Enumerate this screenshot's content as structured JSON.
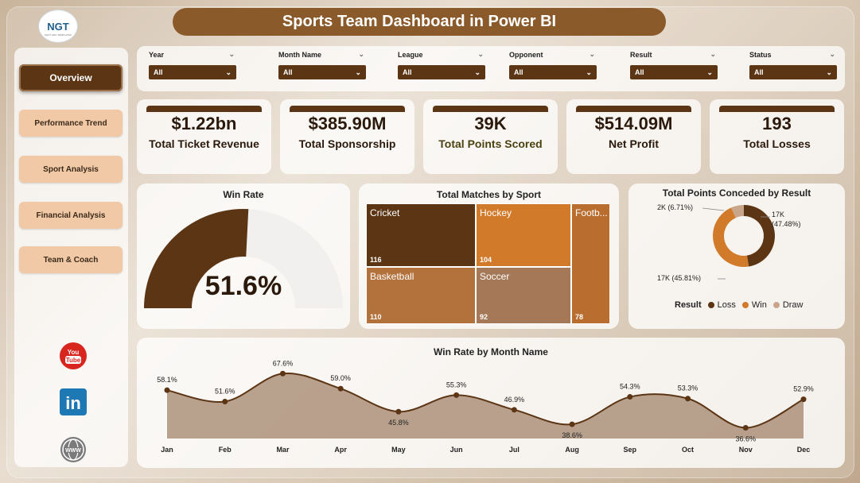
{
  "header": {
    "title": "Sports Team Dashboard in Power BI",
    "logo_text": "NGT",
    "logo_tagline": "NEXT GEN TEMPLATES"
  },
  "sidebar": {
    "items": [
      {
        "label": "Overview",
        "active": true
      },
      {
        "label": "Performance Trend"
      },
      {
        "label": "Sport Analysis"
      },
      {
        "label": "Financial Analysis"
      },
      {
        "label": "Team & Coach"
      }
    ],
    "social": [
      {
        "icon": "youtube-icon",
        "label": "You Tube"
      },
      {
        "icon": "linkedin-icon",
        "label": "in"
      },
      {
        "icon": "globe-icon",
        "label": "WWW"
      }
    ]
  },
  "filters": [
    {
      "label": "Year",
      "value": "All"
    },
    {
      "label": "Month Name",
      "value": "All"
    },
    {
      "label": "League",
      "value": "All"
    },
    {
      "label": "Opponent",
      "value": "All"
    },
    {
      "label": "Result",
      "value": "All"
    },
    {
      "label": "Status",
      "value": "All"
    }
  ],
  "kpis": [
    {
      "value": "$1.22bn",
      "label": "Total Ticket Revenue"
    },
    {
      "value": "$385.90M",
      "label": "Total Sponsorship"
    },
    {
      "value": "39K",
      "label": "Total Points Scored"
    },
    {
      "value": "$514.09M",
      "label": "Net Profit"
    },
    {
      "value": "193",
      "label": "Total Losses"
    }
  ],
  "colors": {
    "dark_brown": "#5c3515",
    "orange": "#d07a2a",
    "tan": "#c9a58a",
    "accent": "#8b5a2b"
  },
  "chart_data": [
    {
      "type": "gauge",
      "title": "Win Rate",
      "value": 51.6,
      "value_label": "51.6%",
      "range": [
        0,
        100
      ]
    },
    {
      "type": "treemap",
      "title": "Total Matches by Sport",
      "categories": [
        "Cricket",
        "Hockey",
        "Football",
        "Basketball",
        "Soccer"
      ],
      "labels": [
        "Cricket",
        "Hockey",
        "Footb...",
        "Basketball",
        "Soccer"
      ],
      "values": [
        116,
        104,
        78,
        110,
        92
      ]
    },
    {
      "type": "donut",
      "title": "Total Points Conceded by Result",
      "legend_title": "Result",
      "categories": [
        "Loss",
        "Win",
        "Draw"
      ],
      "values": [
        17000,
        17000,
        2000
      ],
      "percent": [
        47.48,
        45.81,
        6.71
      ],
      "labels": [
        "17K (47.48%)",
        "17K (45.81%)",
        "2K (6.71%)"
      ],
      "colors": [
        "#5c3515",
        "#d07a2a",
        "#c9a58a"
      ]
    },
    {
      "type": "area",
      "title": "Win Rate by Month Name",
      "categories": [
        "Jan",
        "Feb",
        "Mar",
        "Apr",
        "May",
        "Jun",
        "Jul",
        "Aug",
        "Sep",
        "Oct",
        "Nov",
        "Dec"
      ],
      "values": [
        58.1,
        51.6,
        67.6,
        59.0,
        45.8,
        55.3,
        46.9,
        38.6,
        54.3,
        53.3,
        36.6,
        52.9
      ],
      "labels": [
        "58.1%",
        "51.6%",
        "67.6%",
        "59.0%",
        "45.8%",
        "55.3%",
        "46.9%",
        "38.6%",
        "54.3%",
        "53.3%",
        "36.6%",
        "52.9%"
      ]
    }
  ]
}
